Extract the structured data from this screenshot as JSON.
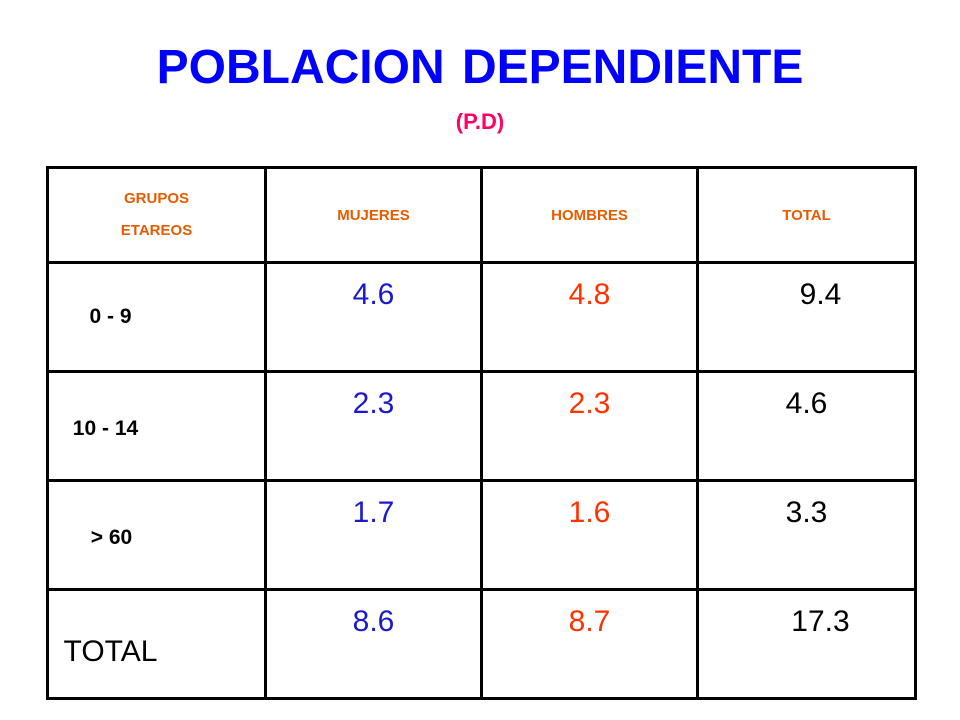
{
  "title": "POBLACION DEPENDIENTE",
  "subtitle": "(P.D)",
  "table": {
    "headers": {
      "grupos_line1": "GRUPOS",
      "grupos_line2": "ETAREOS",
      "mujeres": "MUJERES",
      "hombres": "HOMBRES",
      "total": "TOTAL"
    },
    "rows": [
      {
        "group": "0 - 9",
        "mujeres": "4.6",
        "hombres": "4.8",
        "total": "9.4"
      },
      {
        "group": "10 - 14",
        "mujeres": "2.3",
        "hombres": "2.3",
        "total": "4.6"
      },
      {
        "group": "> 60",
        "mujeres": "1.7",
        "hombres": "1.6",
        "total": "3.3"
      },
      {
        "group": "TOTAL",
        "mujeres": "8.6",
        "hombres": "8.7",
        "total": "17.3"
      }
    ]
  },
  "colors": {
    "title": "#0000ff",
    "subtitle": "#ff0066",
    "header_text": "#e65c00",
    "mujeres_values": "#1a1acc",
    "hombres_values": "#ff3300",
    "total_values": "#000000"
  }
}
